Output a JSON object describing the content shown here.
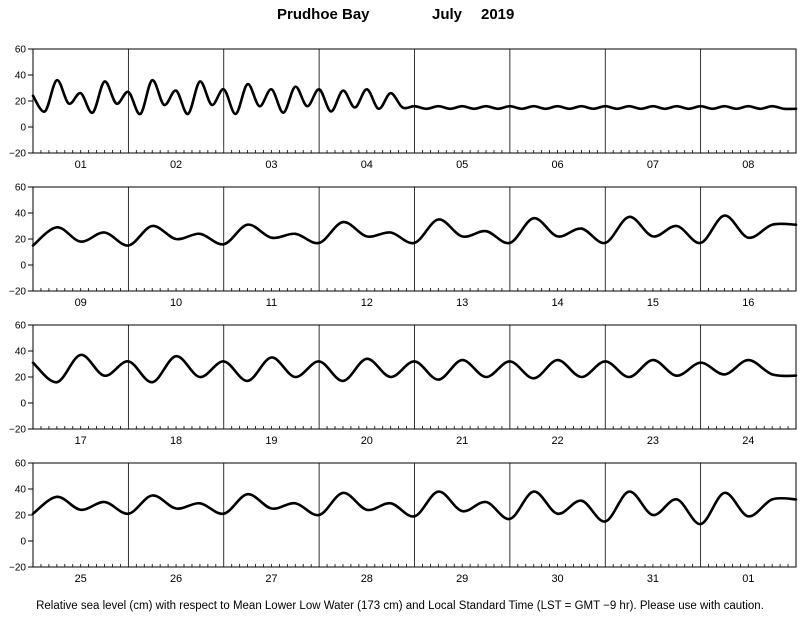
{
  "title": {
    "station": "Prudhoe Bay",
    "month": "July",
    "year": "2019"
  },
  "footer": "Relative sea level (cm) with respect to Mean Lower Low Water (173 cm) and Local Standard Time (LST = GMT −9 hr). Please use with caution.",
  "chart_data": [
    {
      "type": "line",
      "days": [
        "01",
        "02",
        "03",
        "04",
        "05",
        "06",
        "07",
        "08"
      ],
      "yticks": [
        "60",
        "40",
        "20",
        "0",
        "−20"
      ],
      "ylim": [
        -20,
        60
      ],
      "grid": "vertical day separators",
      "series": [
        {
          "x_hours": [
            0,
            3,
            6,
            9,
            12,
            15,
            18,
            21,
            24,
            27,
            30,
            33,
            36,
            39,
            42,
            45,
            48,
            51,
            54,
            57,
            60,
            63,
            66,
            69,
            72,
            75,
            78,
            81,
            84,
            87,
            90,
            93,
            96,
            99,
            102,
            105,
            108,
            111,
            114,
            117,
            120,
            123,
            126,
            129,
            132,
            135,
            138,
            141,
            144,
            147,
            150,
            153,
            156,
            159,
            162,
            165,
            168,
            171,
            174,
            177,
            180,
            183,
            186,
            189,
            192
          ],
          "values": [
            24,
            12,
            36,
            18,
            26,
            11,
            35,
            18,
            27,
            10,
            36,
            17,
            28,
            10,
            35,
            17,
            29,
            10,
            33,
            16,
            29,
            11,
            31,
            16,
            29,
            12,
            28,
            15,
            29,
            14,
            26,
            15,
            16,
            14,
            16,
            14,
            16,
            14,
            16,
            14,
            16,
            14,
            16,
            14,
            16,
            14,
            16,
            14,
            16,
            14,
            16,
            14,
            16,
            14,
            16,
            14,
            16,
            14,
            16,
            14,
            16,
            14,
            16,
            14,
            14
          ]
        }
      ]
    },
    {
      "type": "line",
      "days": [
        "09",
        "10",
        "11",
        "12",
        "13",
        "14",
        "15",
        "16"
      ],
      "yticks": [
        "60",
        "40",
        "20",
        "0",
        "−20"
      ],
      "ylim": [
        -20,
        60
      ],
      "grid": "vertical day separators",
      "series": [
        {
          "x_hours": [
            0,
            6,
            12,
            18,
            24,
            30,
            36,
            42,
            48,
            54,
            60,
            66,
            72,
            78,
            84,
            90,
            96,
            102,
            108,
            114,
            120,
            126,
            132,
            138,
            144,
            150,
            156,
            162,
            168,
            174,
            180,
            186,
            192
          ],
          "values": [
            15,
            29,
            18,
            25,
            15,
            30,
            20,
            24,
            16,
            31,
            21,
            24,
            17,
            33,
            22,
            25,
            17,
            35,
            22,
            26,
            17,
            36,
            22,
            28,
            17,
            37,
            22,
            30,
            17,
            38,
            21,
            31,
            31
          ]
        }
      ]
    },
    {
      "type": "line",
      "days": [
        "17",
        "18",
        "19",
        "20",
        "21",
        "22",
        "23",
        "24"
      ],
      "yticks": [
        "60",
        "40",
        "20",
        "0",
        "−20"
      ],
      "ylim": [
        -20,
        60
      ],
      "grid": "vertical day separators",
      "series": [
        {
          "x_hours": [
            0,
            6,
            12,
            18,
            24,
            30,
            36,
            42,
            48,
            54,
            60,
            66,
            72,
            78,
            84,
            90,
            96,
            102,
            108,
            114,
            120,
            126,
            132,
            138,
            144,
            150,
            156,
            162,
            168,
            174,
            180,
            186,
            192
          ],
          "values": [
            31,
            16,
            37,
            21,
            32,
            16,
            36,
            20,
            32,
            17,
            35,
            20,
            32,
            17,
            34,
            20,
            32,
            18,
            33,
            20,
            32,
            19,
            33,
            20,
            32,
            20,
            33,
            21,
            31,
            22,
            33,
            22,
            21
          ]
        }
      ]
    },
    {
      "type": "line",
      "days": [
        "25",
        "26",
        "27",
        "28",
        "29",
        "30",
        "31",
        "01"
      ],
      "yticks": [
        "60",
        "40",
        "20",
        "0",
        "−20"
      ],
      "ylim": [
        -20,
        60
      ],
      "grid": "vertical day separators",
      "series": [
        {
          "x_hours": [
            0,
            6,
            12,
            18,
            24,
            30,
            36,
            42,
            48,
            54,
            60,
            66,
            72,
            78,
            84,
            90,
            96,
            102,
            108,
            114,
            120,
            126,
            132,
            138,
            144,
            150,
            156,
            162,
            168,
            174,
            180,
            186,
            192
          ],
          "values": [
            21,
            34,
            24,
            30,
            21,
            35,
            25,
            29,
            21,
            36,
            25,
            29,
            20,
            37,
            24,
            29,
            19,
            38,
            23,
            30,
            17,
            38,
            21,
            31,
            15,
            38,
            20,
            32,
            13,
            37,
            19,
            32,
            32
          ]
        }
      ]
    }
  ]
}
